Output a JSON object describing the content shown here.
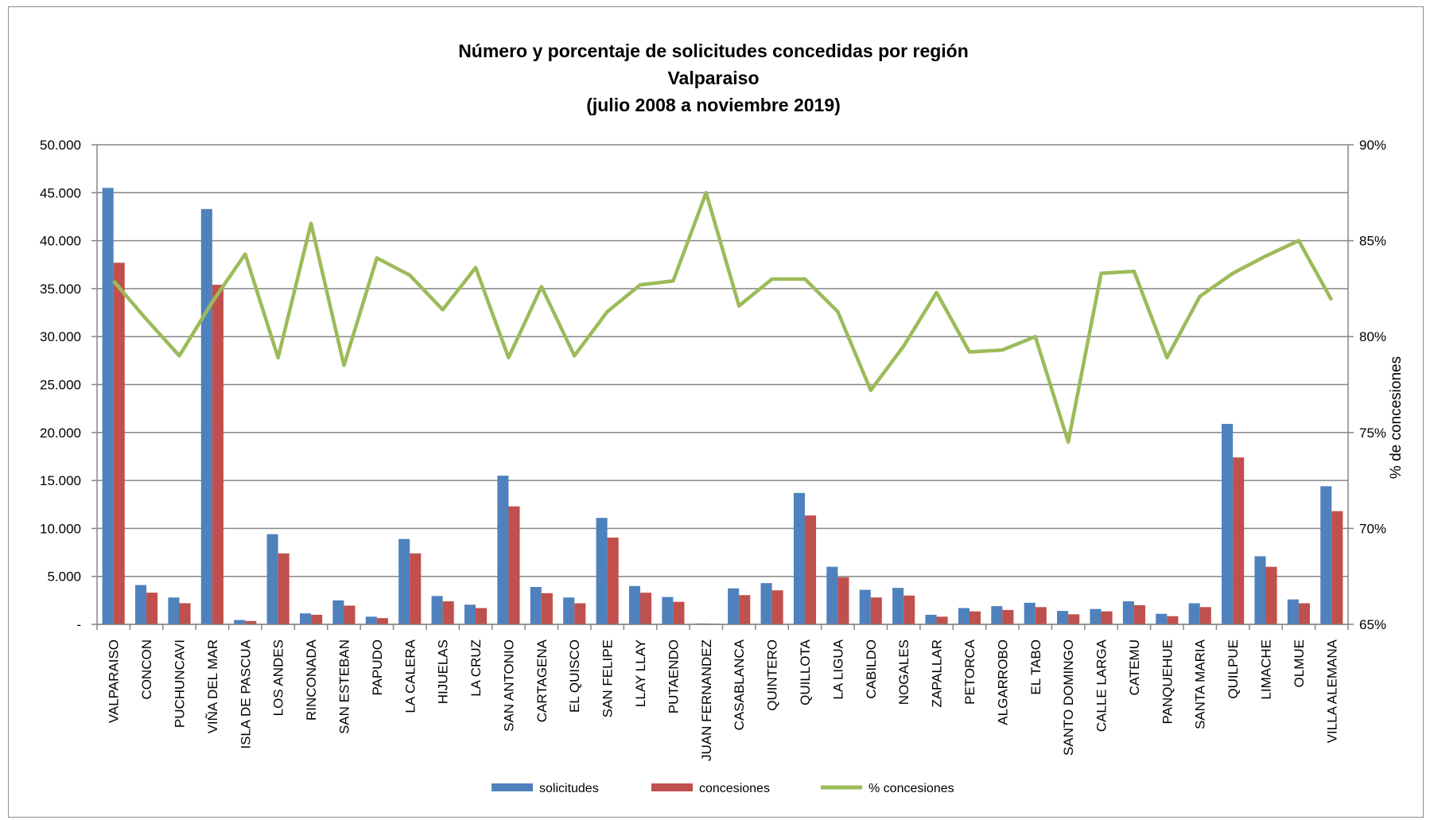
{
  "chart_data": {
    "type": "bar",
    "title": [
      "Número y porcentaje de solicitudes concedidas por región",
      "Valparaiso",
      "(julio 2008 a noviembre 2019)"
    ],
    "xlabel": "",
    "ylabel": "",
    "y2label": "% de concesiones",
    "ylim": [
      0,
      50000
    ],
    "y2lim": [
      0.65,
      0.9
    ],
    "yticks": [
      "-",
      "5.000",
      "10.000",
      "15.000",
      "20.000",
      "25.000",
      "30.000",
      "35.000",
      "40.000",
      "45.000",
      "50.000"
    ],
    "y2ticks": [
      "65%",
      "70%",
      "75%",
      "80%",
      "85%",
      "90%"
    ],
    "grid": true,
    "legend_position": "bottom",
    "categories": [
      "VALPARAISO",
      "CONCON",
      "PUCHUNCAVI",
      "VIÑA DEL MAR",
      "ISLA DE PASCUA",
      "LOS ANDES",
      "RINCONADA",
      "SAN ESTEBAN",
      "PAPUDO",
      "LA CALERA",
      "HIJUELAS",
      "LA CRUZ",
      "SAN ANTONIO",
      "CARTAGENA",
      "EL QUISCO",
      "SAN FELIPE",
      "LLAY LLAY",
      "PUTAENDO",
      "JUAN FERNANDEZ",
      "CASABLANCA",
      "QUINTERO",
      "QUILLOTA",
      "LA LIGUA",
      "CABILDO",
      "NOGALES",
      "ZAPALLAR",
      "PETORCA",
      "ALGARROBO",
      "EL TABO",
      "SANTO DOMINGO",
      "CALLE LARGA",
      "CATEMU",
      "PANQUEHUE",
      "SANTA MARIA",
      "QUILPUE",
      "LIMACHE",
      "OLMUE",
      "VILLA ALEMANA"
    ],
    "series": [
      {
        "name": "solicitudes",
        "type": "bar",
        "axis": "left",
        "color": "#4f81bd",
        "values": [
          45500,
          4100,
          2800,
          43300,
          450,
          9400,
          1150,
          2500,
          800,
          8900,
          2950,
          2050,
          15500,
          3900,
          2800,
          11100,
          4000,
          2850,
          100,
          3750,
          4300,
          13700,
          6000,
          3600,
          3800,
          1000,
          1700,
          1900,
          2250,
          1400,
          1600,
          2400,
          1100,
          2200,
          20900,
          7100,
          2600,
          14400
        ]
      },
      {
        "name": "concesiones",
        "type": "bar",
        "axis": "left",
        "color": "#c0504d",
        "values": [
          37700,
          3300,
          2200,
          35400,
          350,
          7400,
          1000,
          1950,
          650,
          7400,
          2400,
          1700,
          12300,
          3250,
          2200,
          9050,
          3300,
          2350,
          80,
          3050,
          3550,
          11350,
          4900,
          2800,
          3000,
          800,
          1350,
          1500,
          1800,
          1050,
          1350,
          2000,
          850,
          1800,
          17400,
          6000,
          2200,
          11800
        ]
      },
      {
        "name": "% concesiones",
        "type": "line",
        "axis": "right",
        "color": "#9bbb59",
        "values": [
          0.829,
          0.809,
          0.79,
          0.818,
          0.843,
          0.789,
          0.859,
          0.785,
          0.841,
          0.832,
          0.814,
          0.836,
          0.789,
          0.826,
          0.79,
          0.813,
          0.827,
          0.829,
          0.875,
          0.816,
          0.83,
          0.83,
          0.813,
          0.772,
          0.795,
          0.823,
          0.792,
          0.793,
          0.8,
          0.745,
          0.833,
          0.834,
          0.789,
          0.821,
          0.833,
          0.842,
          0.85,
          0.819
        ]
      }
    ]
  }
}
